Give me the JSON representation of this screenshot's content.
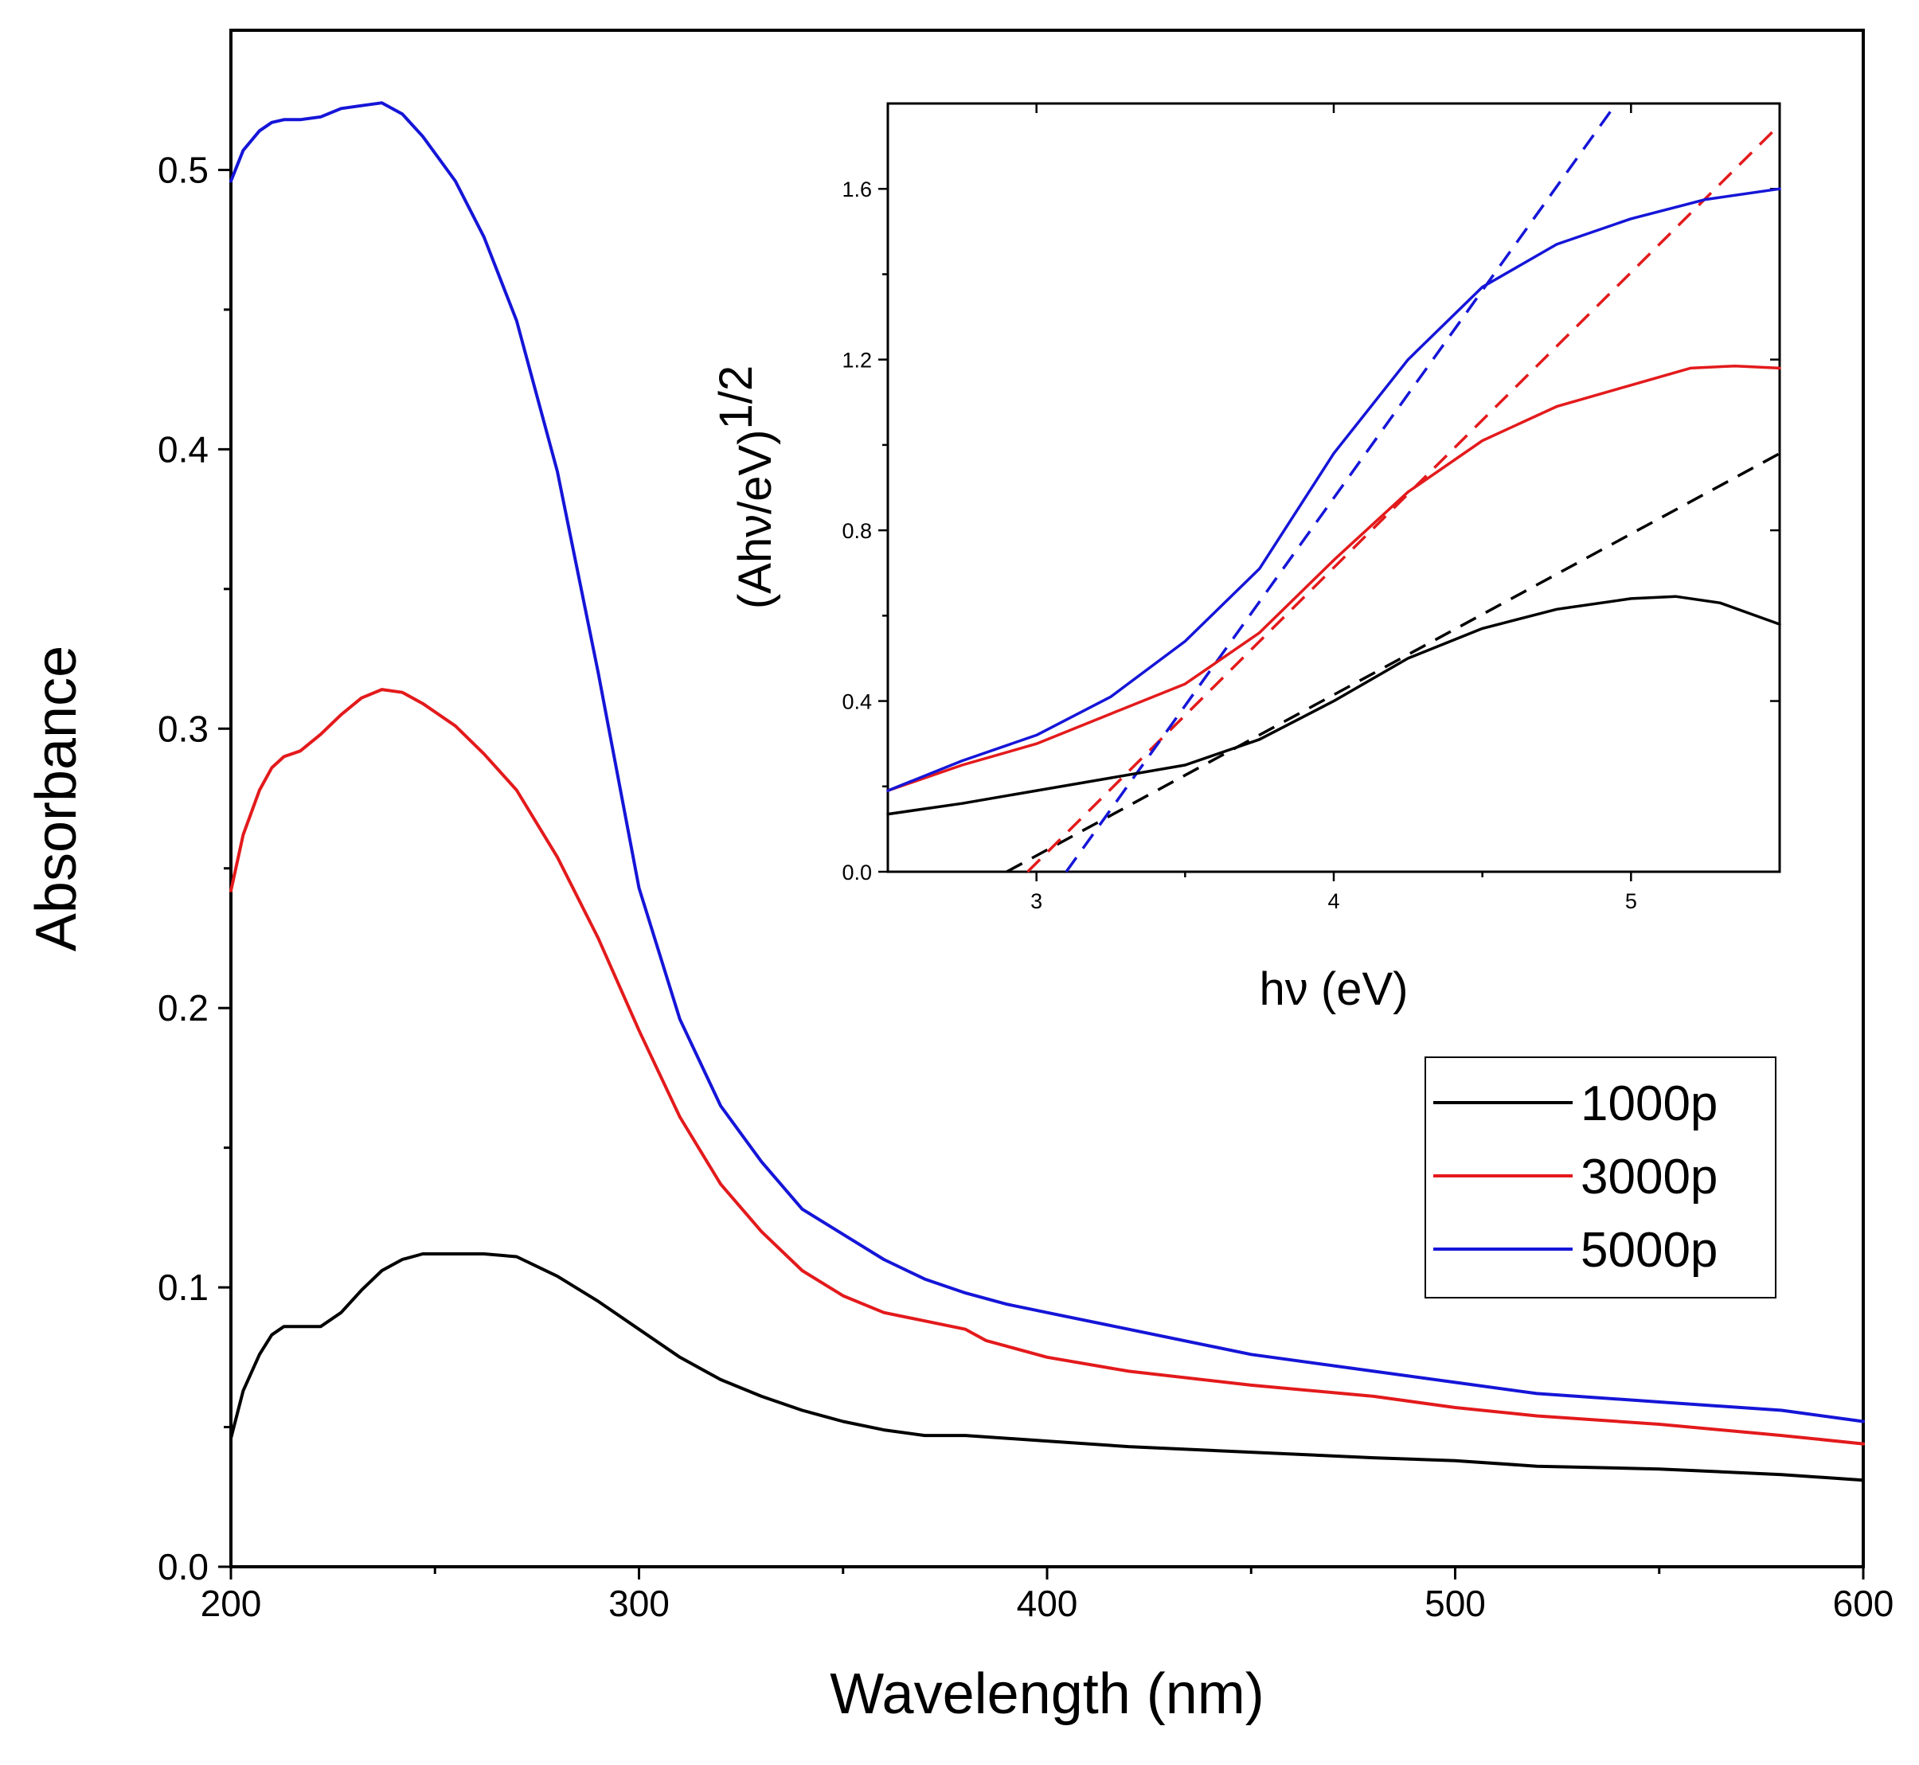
{
  "chart_data": [
    {
      "id": "main",
      "type": "line",
      "title": "",
      "xlabel": "Wavelength (nm)",
      "ylabel": "Absorbance",
      "xlim": [
        200,
        600
      ],
      "ylim": [
        0.0,
        0.55
      ],
      "xticks": [
        200,
        300,
        400,
        500,
        600
      ],
      "xtick_labels": [
        "200",
        "300",
        "400",
        "500",
        "600"
      ],
      "yticks": [
        0.0,
        0.1,
        0.2,
        0.3,
        0.4,
        0.5
      ],
      "ytick_labels": [
        "0.0",
        "0.1",
        "0.2",
        "0.3",
        "0.4",
        "0.5"
      ],
      "grid": false,
      "legend_position": "right",
      "series": [
        {
          "name": "1000p",
          "color": "#000000",
          "x": [
            200,
            203,
            207,
            210,
            213,
            217,
            222,
            227,
            232,
            237,
            242,
            247,
            255,
            262,
            270,
            280,
            290,
            300,
            310,
            320,
            330,
            340,
            350,
            360,
            370,
            380,
            390,
            400,
            420,
            450,
            480,
            500,
            520,
            550,
            580,
            600
          ],
          "y": [
            0.046,
            0.063,
            0.076,
            0.083,
            0.086,
            0.086,
            0.086,
            0.091,
            0.099,
            0.106,
            0.11,
            0.112,
            0.112,
            0.112,
            0.111,
            0.104,
            0.095,
            0.085,
            0.075,
            0.067,
            0.061,
            0.056,
            0.052,
            0.049,
            0.047,
            0.047,
            0.046,
            0.045,
            0.043,
            0.041,
            0.039,
            0.038,
            0.036,
            0.035,
            0.033,
            0.031
          ]
        },
        {
          "name": "3000p",
          "color": "#e31a1c",
          "x": [
            200,
            203,
            207,
            210,
            213,
            217,
            222,
            227,
            232,
            237,
            242,
            247,
            255,
            262,
            270,
            280,
            290,
            300,
            310,
            320,
            330,
            340,
            350,
            360,
            370,
            380,
            385,
            390,
            400,
            420,
            450,
            480,
            500,
            520,
            550,
            580,
            600
          ],
          "y": [
            0.242,
            0.262,
            0.278,
            0.286,
            0.29,
            0.292,
            0.298,
            0.305,
            0.311,
            0.314,
            0.313,
            0.309,
            0.301,
            0.291,
            0.278,
            0.254,
            0.225,
            0.192,
            0.161,
            0.137,
            0.12,
            0.106,
            0.097,
            0.091,
            0.088,
            0.085,
            0.081,
            0.079,
            0.075,
            0.07,
            0.065,
            0.061,
            0.057,
            0.054,
            0.051,
            0.047,
            0.044
          ]
        },
        {
          "name": "5000p",
          "color": "#1515d8",
          "x": [
            200,
            203,
            207,
            210,
            213,
            217,
            222,
            227,
            232,
            237,
            242,
            247,
            255,
            262,
            270,
            280,
            290,
            300,
            310,
            320,
            330,
            340,
            350,
            360,
            370,
            380,
            390,
            400,
            420,
            450,
            480,
            500,
            520,
            550,
            580,
            600
          ],
          "y": [
            0.496,
            0.507,
            0.514,
            0.517,
            0.518,
            0.518,
            0.519,
            0.522,
            0.523,
            0.524,
            0.52,
            0.512,
            0.496,
            0.476,
            0.446,
            0.392,
            0.32,
            0.243,
            0.196,
            0.165,
            0.145,
            0.128,
            0.119,
            0.11,
            0.103,
            0.098,
            0.094,
            0.091,
            0.085,
            0.076,
            0.07,
            0.066,
            0.062,
            0.059,
            0.056,
            0.052
          ]
        }
      ]
    },
    {
      "id": "inset",
      "type": "line",
      "title": "",
      "xlabel": "hν (eV)",
      "ylabel_main": "(Ahν/eV)",
      "ylabel_exp": "1/2",
      "xlim": [
        2.5,
        5.5
      ],
      "ylim": [
        0.0,
        1.8
      ],
      "xticks": [
        3,
        4,
        5
      ],
      "xtick_labels": [
        "3",
        "4",
        "5"
      ],
      "yticks": [
        0.0,
        0.4,
        0.8,
        1.2,
        1.6
      ],
      "ytick_labels": [
        "0.0",
        "0.4",
        "0.8",
        "1.2",
        "1.6"
      ],
      "grid": false,
      "series": [
        {
          "name": "1000p",
          "color": "#000000",
          "x": [
            2.5,
            2.75,
            3.0,
            3.25,
            3.5,
            3.75,
            4.0,
            4.25,
            4.5,
            4.75,
            5.0,
            5.15,
            5.3,
            5.5
          ],
          "y": [
            0.135,
            0.16,
            0.19,
            0.22,
            0.25,
            0.31,
            0.4,
            0.5,
            0.57,
            0.615,
            0.64,
            0.645,
            0.63,
            0.58
          ]
        },
        {
          "name": "3000p",
          "color": "#e31a1c",
          "x": [
            2.5,
            2.75,
            3.0,
            3.25,
            3.5,
            3.75,
            4.0,
            4.25,
            4.5,
            4.75,
            5.0,
            5.2,
            5.35,
            5.5
          ],
          "y": [
            0.19,
            0.25,
            0.3,
            0.37,
            0.44,
            0.56,
            0.73,
            0.89,
            1.01,
            1.09,
            1.14,
            1.18,
            1.185,
            1.18
          ]
        },
        {
          "name": "5000p",
          "color": "#1515d8",
          "x": [
            2.5,
            2.75,
            3.0,
            3.25,
            3.5,
            3.75,
            4.0,
            4.25,
            4.5,
            4.75,
            5.0,
            5.25,
            5.5
          ],
          "y": [
            0.19,
            0.26,
            0.32,
            0.41,
            0.54,
            0.71,
            0.98,
            1.2,
            1.37,
            1.47,
            1.53,
            1.575,
            1.6
          ]
        }
      ],
      "fit_lines": [
        {
          "name": "1000p-fit",
          "color": "#000000",
          "x": [
            2.9,
            5.5
          ],
          "y": [
            0.0,
            0.98
          ]
        },
        {
          "name": "3000p-fit",
          "color": "#e31a1c",
          "x": [
            2.97,
            5.5
          ],
          "y": [
            0.0,
            1.75
          ]
        },
        {
          "name": "5000p-fit",
          "color": "#1515d8",
          "x": [
            3.1,
            4.95
          ],
          "y": [
            0.0,
            1.8
          ]
        }
      ]
    }
  ],
  "legend": {
    "items": [
      {
        "label": "1000p",
        "color": "#000000"
      },
      {
        "label": "3000p",
        "color": "#e31a1c"
      },
      {
        "label": "5000p",
        "color": "#1515d8"
      }
    ]
  }
}
